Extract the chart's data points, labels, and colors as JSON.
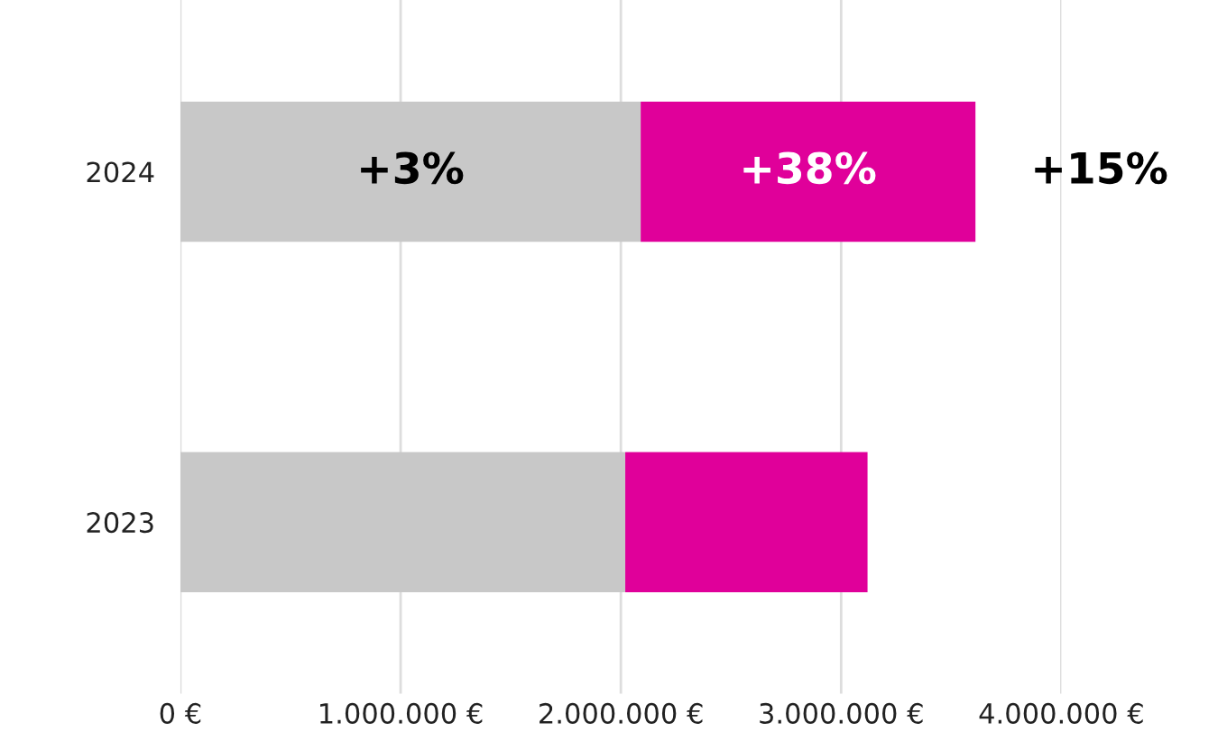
{
  "chart_data": {
    "type": "bar",
    "orientation": "horizontal",
    "stacked": true,
    "categories": [
      "2024",
      "2023"
    ],
    "series": [
      {
        "color": "#c8c8c8",
        "values": [
          2090000,
          2020000
        ]
      },
      {
        "color": "#e0009a",
        "values": [
          1520000,
          1100000
        ]
      }
    ],
    "xlim": [
      0,
      4000000
    ],
    "xticks": [
      {
        "value": 0,
        "label": "0 €"
      },
      {
        "value": 1000000,
        "label": "1.000.000 €"
      },
      {
        "value": 2000000,
        "label": "2.000.000 €"
      },
      {
        "value": 3000000,
        "label": "3.000.000 €"
      },
      {
        "value": 4000000,
        "label": "4.000.000 €"
      }
    ],
    "grid": "x",
    "legend": false,
    "annotations": [
      "+3%",
      "+38%",
      "+15%"
    ]
  }
}
